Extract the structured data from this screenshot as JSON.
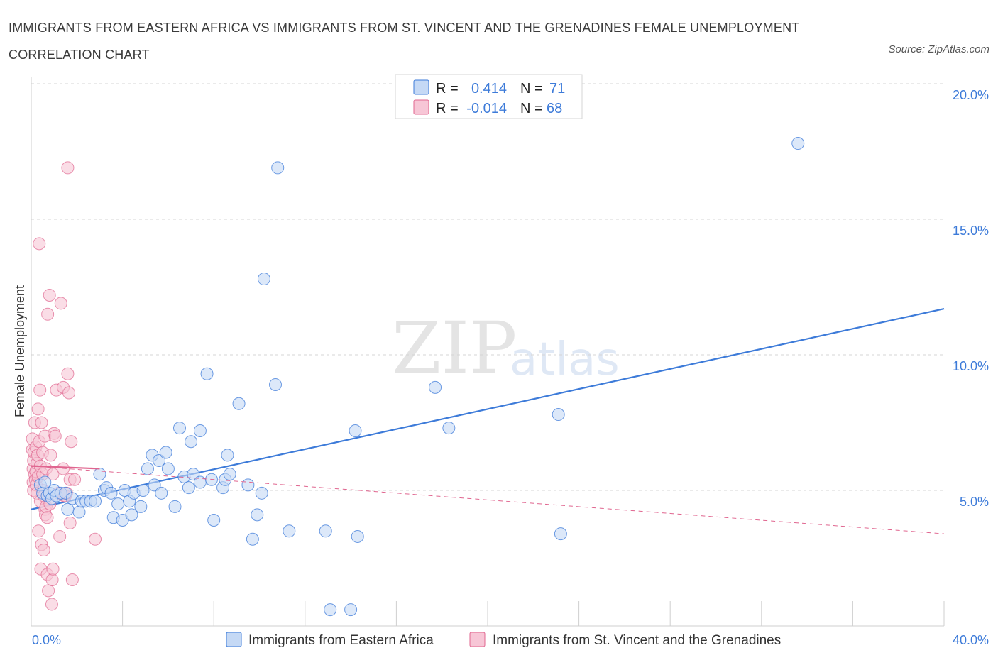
{
  "header": {
    "title": "IMMIGRANTS FROM EASTERN AFRICA VS IMMIGRANTS FROM ST. VINCENT AND THE GRENADINES FEMALE UNEMPLOYMENT CORRELATION CHART",
    "source": "Source: ZipAtlas.com"
  },
  "watermark": {
    "zip": "ZIP",
    "atlas": "atlas"
  },
  "colors": {
    "blue": "#3d7bd9",
    "blue_fill": "#c5d9f5",
    "pink": "#e0658f",
    "pink_fill": "#f7c6d6",
    "grid": "#d5d5d5"
  },
  "legend": {
    "r_label": "R =",
    "n_label": "N =",
    "series1": {
      "r": "0.414",
      "n": "71"
    },
    "series2": {
      "r": "-0.014",
      "n": "68"
    }
  },
  "chart_data": {
    "type": "scatter",
    "title": "IMMIGRANTS FROM EASTERN AFRICA VS IMMIGRANTS FROM ST. VINCENT AND THE GRENADINES FEMALE UNEMPLOYMENT CORRELATION CHART",
    "xlabel": "",
    "ylabel": "Female Unemployment",
    "xlim": [
      0,
      40
    ],
    "ylim": [
      0,
      20
    ],
    "x_tick_labels": [
      "0.0%",
      "40.0%"
    ],
    "y_ticks": [
      5,
      10,
      15,
      20
    ],
    "y_tick_labels": [
      "5.0%",
      "10.0%",
      "15.0%",
      "20.0%"
    ],
    "grid": true,
    "legend_position": "top-center",
    "series": [
      {
        "name": "Immigrants from Eastern Africa",
        "color": "#3d7bd9",
        "R": 0.414,
        "N": 71,
        "trend": {
          "x": [
            0,
            40
          ],
          "y": [
            4.3,
            11.7
          ],
          "style": "solid"
        },
        "points": [
          [
            0.4,
            5.2
          ],
          [
            0.5,
            4.9
          ],
          [
            0.6,
            5.3
          ],
          [
            0.7,
            4.8
          ],
          [
            0.8,
            4.9
          ],
          [
            0.9,
            4.7
          ],
          [
            1.0,
            5.0
          ],
          [
            1.1,
            4.8
          ],
          [
            1.3,
            4.9
          ],
          [
            1.5,
            4.9
          ],
          [
            1.6,
            4.3
          ],
          [
            1.8,
            4.7
          ],
          [
            2.1,
            4.2
          ],
          [
            2.2,
            4.6
          ],
          [
            2.4,
            4.6
          ],
          [
            2.6,
            4.6
          ],
          [
            2.8,
            4.6
          ],
          [
            3.0,
            5.6
          ],
          [
            3.2,
            5.0
          ],
          [
            3.3,
            5.1
          ],
          [
            3.5,
            4.9
          ],
          [
            3.6,
            4.0
          ],
          [
            3.8,
            4.5
          ],
          [
            4.0,
            3.9
          ],
          [
            4.1,
            5.0
          ],
          [
            4.3,
            4.6
          ],
          [
            4.4,
            4.1
          ],
          [
            4.5,
            4.9
          ],
          [
            4.8,
            4.4
          ],
          [
            4.9,
            5.0
          ],
          [
            5.1,
            5.8
          ],
          [
            5.3,
            6.3
          ],
          [
            5.4,
            5.2
          ],
          [
            5.6,
            6.1
          ],
          [
            5.7,
            4.9
          ],
          [
            5.9,
            6.4
          ],
          [
            6.0,
            5.8
          ],
          [
            6.3,
            4.4
          ],
          [
            6.5,
            7.3
          ],
          [
            6.7,
            5.5
          ],
          [
            6.9,
            5.1
          ],
          [
            7.0,
            6.8
          ],
          [
            7.1,
            5.6
          ],
          [
            7.4,
            5.3
          ],
          [
            7.4,
            7.2
          ],
          [
            7.7,
            9.3
          ],
          [
            7.9,
            5.4
          ],
          [
            8.0,
            3.9
          ],
          [
            8.4,
            5.1
          ],
          [
            8.5,
            5.4
          ],
          [
            8.6,
            6.3
          ],
          [
            8.7,
            5.6
          ],
          [
            9.1,
            8.2
          ],
          [
            9.5,
            5.2
          ],
          [
            9.7,
            3.2
          ],
          [
            9.9,
            4.1
          ],
          [
            10.1,
            4.9
          ],
          [
            10.2,
            12.8
          ],
          [
            10.7,
            8.9
          ],
          [
            10.8,
            16.9
          ],
          [
            11.3,
            3.5
          ],
          [
            12.9,
            3.5
          ],
          [
            13.1,
            0.6
          ],
          [
            14.0,
            0.6
          ],
          [
            14.2,
            7.2
          ],
          [
            14.3,
            3.3
          ],
          [
            17.7,
            8.8
          ],
          [
            18.3,
            7.3
          ],
          [
            23.1,
            7.8
          ],
          [
            23.2,
            3.4
          ],
          [
            33.6,
            17.8
          ]
        ]
      },
      {
        "name": "Immigrants from St. Vincent and the Grenadines",
        "color": "#e0658f",
        "R": -0.014,
        "N": 68,
        "trend_solid": {
          "x": [
            0,
            3.0
          ],
          "y": [
            5.9,
            5.8
          ],
          "style": "solid"
        },
        "trend_dashed": {
          "x": [
            0,
            40
          ],
          "y": [
            5.9,
            3.4
          ],
          "style": "dashed"
        },
        "points": [
          [
            0.05,
            6.9
          ],
          [
            0.05,
            6.5
          ],
          [
            0.08,
            5.8
          ],
          [
            0.08,
            5.3
          ],
          [
            0.1,
            6.1
          ],
          [
            0.1,
            5.0
          ],
          [
            0.12,
            6.4
          ],
          [
            0.15,
            5.6
          ],
          [
            0.15,
            7.5
          ],
          [
            0.18,
            5.4
          ],
          [
            0.2,
            6.6
          ],
          [
            0.2,
            5.7
          ],
          [
            0.22,
            5.2
          ],
          [
            0.25,
            6.0
          ],
          [
            0.25,
            4.9
          ],
          [
            0.28,
            6.3
          ],
          [
            0.3,
            8.0
          ],
          [
            0.3,
            5.5
          ],
          [
            0.32,
            3.5
          ],
          [
            0.35,
            14.1
          ],
          [
            0.35,
            6.8
          ],
          [
            0.38,
            8.7
          ],
          [
            0.4,
            5.9
          ],
          [
            0.4,
            4.6
          ],
          [
            0.42,
            2.1
          ],
          [
            0.45,
            3.0
          ],
          [
            0.45,
            7.5
          ],
          [
            0.5,
            6.4
          ],
          [
            0.5,
            5.6
          ],
          [
            0.52,
            5.0
          ],
          [
            0.55,
            4.8
          ],
          [
            0.55,
            2.8
          ],
          [
            0.6,
            7.0
          ],
          [
            0.6,
            4.3
          ],
          [
            0.62,
            4.1
          ],
          [
            0.65,
            5.8
          ],
          [
            0.65,
            4.4
          ],
          [
            0.7,
            1.9
          ],
          [
            0.7,
            4.0
          ],
          [
            0.72,
            11.5
          ],
          [
            0.75,
            1.3
          ],
          [
            0.8,
            12.2
          ],
          [
            0.82,
            4.5
          ],
          [
            0.85,
            6.3
          ],
          [
            0.9,
            0.8
          ],
          [
            0.92,
            1.7
          ],
          [
            0.95,
            5.6
          ],
          [
            0.95,
            2.1
          ],
          [
            1.0,
            7.1
          ],
          [
            1.05,
            7.0
          ],
          [
            1.1,
            8.7
          ],
          [
            1.2,
            4.9
          ],
          [
            1.25,
            3.3
          ],
          [
            1.3,
            11.9
          ],
          [
            1.4,
            8.8
          ],
          [
            1.4,
            5.8
          ],
          [
            1.45,
            4.8
          ],
          [
            1.5,
            4.8
          ],
          [
            1.55,
            4.9
          ],
          [
            1.6,
            9.3
          ],
          [
            1.6,
            16.9
          ],
          [
            1.65,
            8.6
          ],
          [
            1.7,
            5.4
          ],
          [
            1.7,
            3.8
          ],
          [
            1.75,
            6.8
          ],
          [
            1.8,
            1.7
          ],
          [
            1.9,
            5.4
          ],
          [
            2.8,
            3.2
          ]
        ]
      }
    ]
  },
  "bottom_legend": {
    "series1_label": "Immigrants from Eastern Africa",
    "series2_label": "Immigrants from St. Vincent and the Grenadines"
  }
}
